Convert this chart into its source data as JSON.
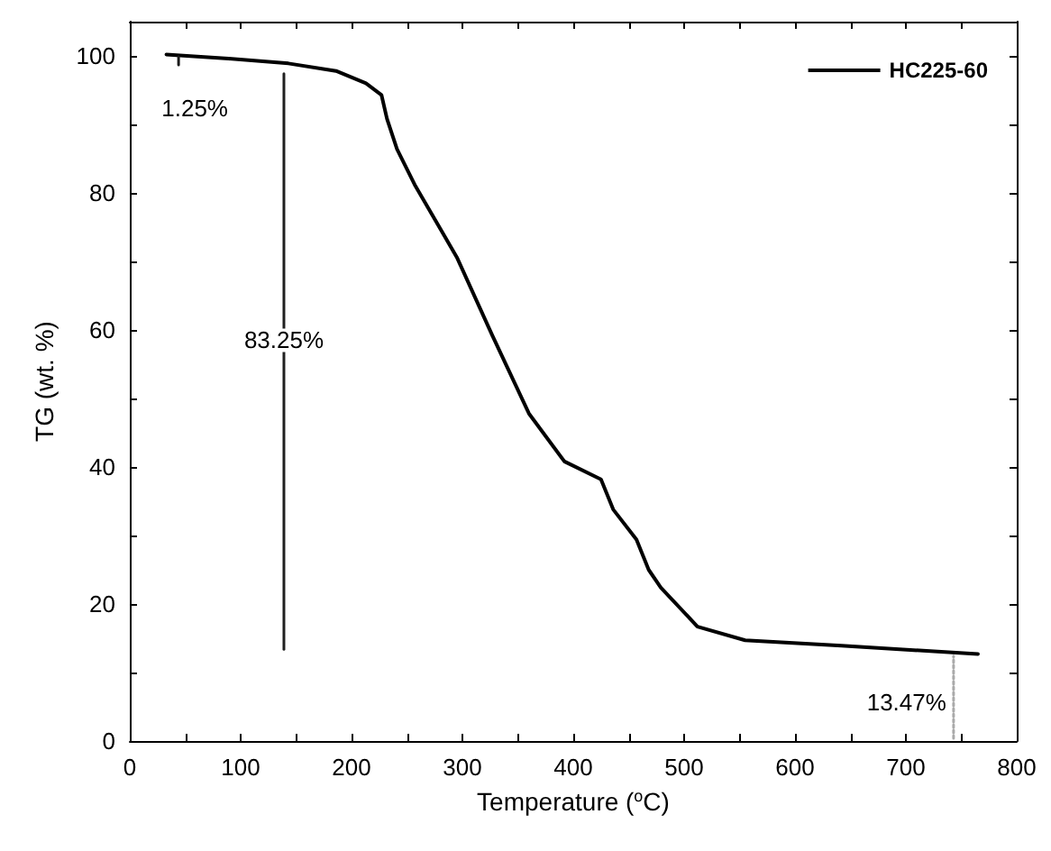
{
  "chart_data": {
    "type": "line",
    "xlabel": "Temperature ($^{o}$C)",
    "ylabel": "TG (wt. %)",
    "xlim": [
      0,
      800
    ],
    "ylim": [
      0,
      105
    ],
    "xticks": [
      0,
      {
        "value": 50,
        "label": null
      },
      100,
      {
        "value": 150,
        "label": null
      },
      200,
      {
        "value": 250,
        "label": null
      },
      300,
      {
        "value": 350,
        "label": null
      },
      400,
      {
        "value": 450,
        "label": null
      },
      500,
      {
        "value": 550,
        "label": null
      },
      600,
      {
        "value": 650,
        "label": null
      },
      700,
      {
        "value": 750,
        "label": null
      },
      800
    ],
    "yticks": [
      0,
      {
        "value": 10,
        "label": null
      },
      20,
      {
        "value": 30,
        "label": null
      },
      40,
      {
        "value": 50,
        "label": null
      },
      60,
      {
        "value": 70,
        "label": null
      },
      80,
      {
        "value": 90,
        "label": null
      },
      100
    ],
    "series": [
      {
        "name": "HC225-60",
        "color": "#000000",
        "x": [
          33,
          89,
          143,
          186,
          213,
          227,
          232,
          241,
          257,
          295,
          327,
          360,
          392,
          425,
          436,
          457,
          468,
          479,
          512,
          555,
          642,
          765
        ],
        "values": [
          100.2,
          99.6,
          98.9,
          97.8,
          96,
          94.3,
          90.8,
          86.4,
          81.2,
          70.6,
          59.2,
          47.8,
          40.8,
          38.2,
          33.8,
          29.4,
          25,
          22.4,
          16.7,
          14.7,
          13.9,
          12.7
        ]
      },
      {
        "type": "line",
        "color": "#1a1a1a",
        "marker": "none",
        "x": [
          44,
          44
        ],
        "values": [
          98.7,
          99.9
        ]
      },
      {
        "type": "line",
        "color": "#202020",
        "marker": "none",
        "x": [
          139,
          139
        ],
        "values": [
          13.4,
          97.4
        ]
      },
      {
        "type": "line",
        "color": "#aaaaaa",
        "line_style": "dotted",
        "x": [
          743,
          743
        ],
        "values": [
          0.4,
          12.4
        ]
      }
    ],
    "annotations": [
      {
        "text": "1.25%",
        "x": 44,
        "y": 98.7
      },
      {
        "text": "83.25%",
        "x": 139,
        "y": 58.5
      },
      {
        "text": "13.47%",
        "x": 743,
        "y": 5.7
      }
    ],
    "legend": "top right",
    "grid": false
  }
}
